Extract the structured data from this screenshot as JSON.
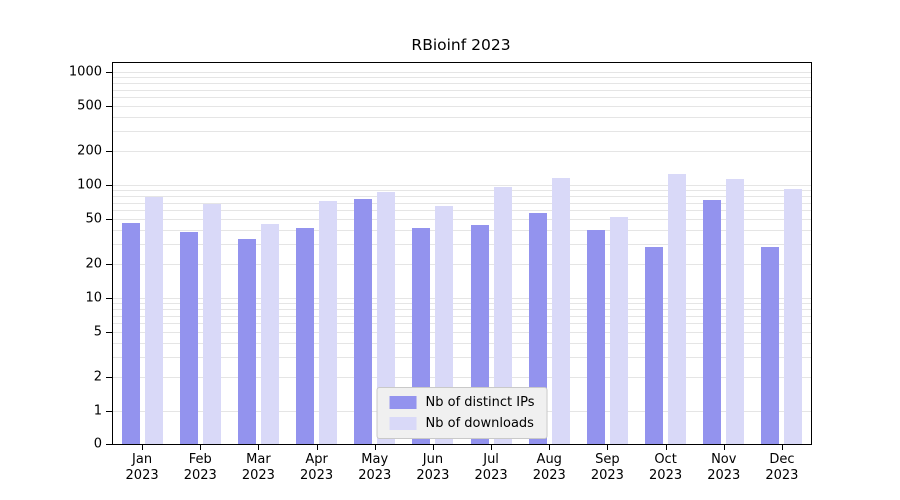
{
  "figure": {
    "background": "#ffffff"
  },
  "chart_data": {
    "type": "bar",
    "title": "RBioinf 2023",
    "categories": [
      "Jan 2023",
      "Feb 2023",
      "Mar 2023",
      "Apr 2023",
      "May 2023",
      "Jun 2023",
      "Jul 2023",
      "Aug 2023",
      "Sep 2023",
      "Oct 2023",
      "Nov 2023",
      "Dec 2023"
    ],
    "series": [
      {
        "name": "Nb of distinct IPs",
        "color": "#9393ee",
        "values": [
          46,
          38,
          33,
          42,
          75,
          42,
          44,
          57,
          40,
          28,
          74,
          28
        ]
      },
      {
        "name": "Nb of downloads",
        "color": "#d9d9f8",
        "values": [
          78,
          68,
          45,
          72,
          87,
          65,
          96,
          115,
          52,
          125,
          112,
          92
        ]
      }
    ],
    "yscale": "symlog",
    "yticks": [
      0,
      1,
      2,
      5,
      10,
      20,
      50,
      100,
      200,
      500,
      1000
    ],
    "ylim": [
      0,
      1200
    ],
    "xlabel": "",
    "ylabel": "",
    "grid": true,
    "gridline_color": "#e5e5e5",
    "legend_position": "lower center"
  }
}
